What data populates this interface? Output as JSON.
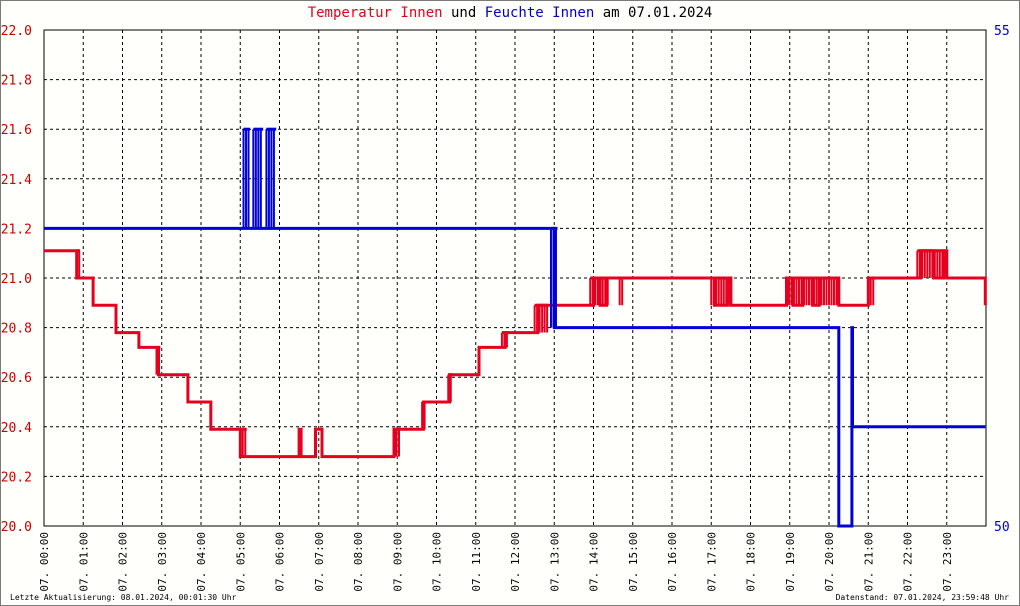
{
  "title": {
    "part1": "Temperatur Innen",
    "part2": "und",
    "part3": "Feuchte Innen",
    "part4": "am 07.01.2024"
  },
  "footer": {
    "left": "Letzte Aktualisierung: 08.01.2024, 00:01:30 Uhr",
    "right": "Datenstand: 07.01.2024, 23:59:48 Uhr"
  },
  "colors": {
    "temperature": "#e4001e",
    "humidity": "#0000dd",
    "grid": "#000000",
    "background": "#fffffc"
  },
  "chart_data": {
    "type": "line",
    "title": "Temperatur Innen und Feuchte Innen am 07.01.2024",
    "x_range": [
      "00:00",
      "24:00"
    ],
    "x_tick_labels": [
      "07. 00:00",
      "07. 01:00",
      "07. 02:00",
      "07. 03:00",
      "07. 04:00",
      "07. 05:00",
      "07. 06:00",
      "07. 07:00",
      "07. 08:00",
      "07. 09:00",
      "07. 10:00",
      "07. 11:00",
      "07. 12:00",
      "07. 13:00",
      "07. 14:00",
      "07. 15:00",
      "07. 16:00",
      "07. 17:00",
      "07. 18:00",
      "07. 19:00",
      "07. 20:00",
      "07. 21:00",
      "07. 22:00",
      "07. 23:00"
    ],
    "y_left": {
      "ylim": [
        20.0,
        22.0
      ],
      "ticks": [
        "20.0",
        "20.2",
        "20.4",
        "20.6",
        "20.8",
        "21.0",
        "21.2",
        "21.4",
        "21.6",
        "21.8",
        "22.0"
      ]
    },
    "y_right": {
      "ylim": [
        50,
        55
      ],
      "ticks": [
        "50",
        "55"
      ]
    },
    "grid": true,
    "series": [
      {
        "name": "Temperatur Innen",
        "axis": "left",
        "color": "#e4001e",
        "step": true,
        "points": [
          [
            "00:00",
            21.11
          ],
          [
            "00:50",
            21.11
          ],
          [
            "00:50",
            21.0
          ],
          [
            "01:15",
            21.0
          ],
          [
            "01:15",
            20.89
          ],
          [
            "01:50",
            20.89
          ],
          [
            "01:50",
            20.78
          ],
          [
            "02:25",
            20.78
          ],
          [
            "02:25",
            20.72
          ],
          [
            "02:55",
            20.72
          ],
          [
            "02:55",
            20.61
          ],
          [
            "03:40",
            20.61
          ],
          [
            "03:40",
            20.5
          ],
          [
            "04:15",
            20.5
          ],
          [
            "04:15",
            20.39
          ],
          [
            "05:00",
            20.39
          ],
          [
            "05:00",
            20.28
          ],
          [
            "06:30",
            20.28
          ],
          [
            "06:30",
            20.39
          ],
          [
            "06:33",
            20.39
          ],
          [
            "06:33",
            20.28
          ],
          [
            "06:55",
            20.28
          ],
          [
            "06:55",
            20.39
          ],
          [
            "07:05",
            20.39
          ],
          [
            "07:05",
            20.28
          ],
          [
            "08:55",
            20.28
          ],
          [
            "08:55",
            20.39
          ],
          [
            "09:40",
            20.39
          ],
          [
            "09:40",
            20.5
          ],
          [
            "10:20",
            20.5
          ],
          [
            "10:20",
            20.61
          ],
          [
            "11:05",
            20.61
          ],
          [
            "11:05",
            20.72
          ],
          [
            "11:45",
            20.72
          ],
          [
            "11:45",
            20.78
          ],
          [
            "12:35",
            20.78
          ],
          [
            "12:35",
            20.89
          ],
          [
            "14:00",
            20.89
          ],
          [
            "14:00",
            21.0
          ],
          [
            "14:10",
            21.0
          ],
          [
            "14:10",
            20.89
          ],
          [
            "14:20",
            20.89
          ],
          [
            "14:20",
            21.0
          ],
          [
            "17:05",
            21.0
          ],
          [
            "17:05",
            20.89
          ],
          [
            "17:25",
            20.89
          ],
          [
            "17:25",
            21.0
          ],
          [
            "17:30",
            21.0
          ],
          [
            "17:30",
            20.89
          ],
          [
            "18:55",
            20.89
          ],
          [
            "18:55",
            21.0
          ],
          [
            "19:05",
            21.0
          ],
          [
            "19:05",
            20.89
          ],
          [
            "19:20",
            20.89
          ],
          [
            "19:20",
            21.0
          ],
          [
            "19:35",
            21.0
          ],
          [
            "19:35",
            20.89
          ],
          [
            "19:45",
            20.89
          ],
          [
            "19:45",
            21.0
          ],
          [
            "20:15",
            21.0
          ],
          [
            "20:15",
            20.89
          ],
          [
            "21:00",
            20.89
          ],
          [
            "21:00",
            21.0
          ],
          [
            "22:20",
            21.0
          ],
          [
            "22:20",
            21.11
          ],
          [
            "22:40",
            21.11
          ],
          [
            "22:40",
            21.0
          ],
          [
            "22:55",
            21.0
          ],
          [
            "22:55",
            21.11
          ],
          [
            "23:00",
            21.11
          ],
          [
            "23:00",
            21.0
          ],
          [
            "23:59",
            21.0
          ],
          [
            "23:59",
            20.89
          ]
        ],
        "flicker_ranges": [
          {
            "from": "00:50",
            "to": "00:55",
            "low": 21.0,
            "high": 21.11
          },
          {
            "from": "02:52",
            "to": "02:58",
            "low": 20.61,
            "high": 20.72
          },
          {
            "from": "05:00",
            "to": "05:10",
            "low": 20.28,
            "high": 20.39
          },
          {
            "from": "08:55",
            "to": "09:05",
            "low": 20.28,
            "high": 20.39
          },
          {
            "from": "09:38",
            "to": "09:43",
            "low": 20.39,
            "high": 20.5
          },
          {
            "from": "10:18",
            "to": "10:25",
            "low": 20.5,
            "high": 20.61
          },
          {
            "from": "11:40",
            "to": "11:50",
            "low": 20.72,
            "high": 20.78
          },
          {
            "from": "12:30",
            "to": "12:50",
            "low": 20.78,
            "high": 20.89
          },
          {
            "from": "13:55",
            "to": "14:25",
            "low": 20.89,
            "high": 21.0
          },
          {
            "from": "14:40",
            "to": "14:45",
            "low": 20.89,
            "high": 21.0
          },
          {
            "from": "17:00",
            "to": "17:30",
            "low": 20.89,
            "high": 21.0
          },
          {
            "from": "18:55",
            "to": "20:15",
            "low": 20.89,
            "high": 21.0
          },
          {
            "from": "21:00",
            "to": "21:10",
            "low": 20.89,
            "high": 21.0
          },
          {
            "from": "22:15",
            "to": "23:00",
            "low": 21.0,
            "high": 21.11
          }
        ]
      },
      {
        "name": "Feuchte Innen",
        "axis": "right",
        "color": "#0000dd",
        "step": true,
        "points": [
          [
            "00:00",
            53.0
          ],
          [
            "13:00",
            53.0
          ],
          [
            "13:00",
            52.0
          ],
          [
            "20:15",
            52.0
          ],
          [
            "20:15",
            50.0
          ],
          [
            "20:35",
            50.0
          ],
          [
            "20:35",
            52.0
          ],
          [
            "20:36",
            52.0
          ],
          [
            "20:36",
            51.0
          ],
          [
            "23:59",
            51.0
          ]
        ],
        "flicker_ranges": [
          {
            "from": "05:05",
            "to": "05:15",
            "low": 53.0,
            "high": 54.0
          },
          {
            "from": "05:20",
            "to": "05:35",
            "low": 53.0,
            "high": 54.0
          },
          {
            "from": "05:40",
            "to": "05:55",
            "low": 53.0,
            "high": 54.0
          },
          {
            "from": "12:55",
            "to": "13:05",
            "low": 52.0,
            "high": 53.0
          }
        ]
      }
    ]
  }
}
